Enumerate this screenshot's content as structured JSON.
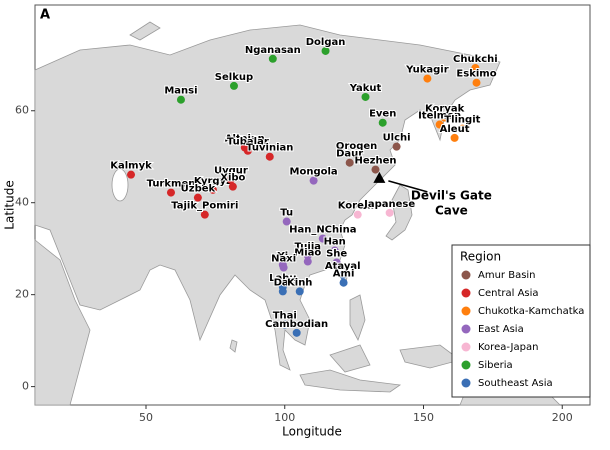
{
  "chart_data": {
    "type": "scatter",
    "panel_label": "A",
    "x_label": "Longitude",
    "y_label": "Latitude",
    "xlim": [
      10,
      210
    ],
    "ylim": [
      -4,
      83
    ],
    "xticks": [
      50,
      100,
      150,
      200
    ],
    "yticks": [
      0,
      20,
      40,
      60
    ],
    "legend_title": "Region",
    "legend_position": "lower right",
    "annotation": {
      "lines": [
        "Devil's Gate",
        "Cave"
      ],
      "x": 134.1,
      "y": 45.4,
      "marker": "triangle",
      "color": "#000000"
    },
    "series": [
      {
        "name": "Amur Basin",
        "color": "#8c564b",
        "names": [
          "Oroqen",
          "Daur",
          "Hezhen",
          "Ulchi"
        ],
        "x": [
          125.9,
          123.4,
          132.7,
          140.3
        ],
        "y": [
          50.4,
          48.7,
          47.2,
          52.2
        ]
      },
      {
        "name": "Central Asia",
        "color": "#d62728",
        "names": [
          "Kalmyk",
          "Turkmen",
          "Kyrgyz",
          "Uzbek",
          "Tajik_Pomiri",
          "Uygur",
          "Xibo",
          "Altaian",
          "Tubalar",
          "Tuvinian"
        ],
        "x": [
          44.6,
          59,
          74.1,
          68.7,
          71.2,
          80.6,
          81.3,
          85.6,
          86.7,
          94.6
        ],
        "y": [
          46.1,
          42.2,
          42.8,
          41.1,
          37.4,
          45,
          43.5,
          52,
          51.3,
          50
        ]
      },
      {
        "name": "Chukotka-Kamchatka",
        "color": "#ff7f0e",
        "names": [
          "Yukagir",
          "Chukchi",
          "Eskimo",
          "Koryak",
          "Itelmen",
          "Tlingit",
          "Aleut"
        ],
        "x": [
          151.4,
          168.7,
          169.1,
          157.6,
          155.8,
          164,
          161.2
        ],
        "y": [
          67,
          69.3,
          66.1,
          58.5,
          57,
          56.1,
          54.1
        ]
      },
      {
        "name": "East Asia",
        "color": "#9467bd",
        "names": [
          "Mongola",
          "Tu",
          "Han_NChina",
          "Han",
          "Tujia",
          "Miao",
          "Yi",
          "Naxi",
          "She"
        ],
        "x": [
          110.4,
          100.7,
          113.7,
          118,
          108.3,
          108.3,
          99.3,
          99.6,
          118.7
        ],
        "y": [
          44.8,
          35.9,
          32.2,
          29.6,
          28.5,
          27.2,
          26.5,
          25.9,
          27
        ]
      },
      {
        "name": "Korea-Japan",
        "color": "#f7b6d2",
        "names": [
          "Korean",
          "Japanese"
        ],
        "x": [
          126.3,
          137.8
        ],
        "y": [
          37.4,
          37.8
        ]
      },
      {
        "name": "Siberia",
        "color": "#2ca02c",
        "names": [
          "Nganasan",
          "Dolgan",
          "Mansi",
          "Selkup",
          "Yakut",
          "Even"
        ],
        "x": [
          95.7,
          114.7,
          62.6,
          81.7,
          129.1,
          135.3
        ],
        "y": [
          71.3,
          73,
          62.4,
          65.4,
          63,
          57.4
        ]
      },
      {
        "name": "Southeast Asia",
        "color": "#3a6fb5",
        "names": [
          "Atayal",
          "Ami",
          "Lahu",
          "Dai",
          "Kinh",
          "Thai",
          "Cambodian"
        ],
        "x": [
          120.9,
          121.2,
          99.3,
          99.3,
          105.4,
          100,
          104.3
        ],
        "y": [
          24.3,
          22.6,
          21.7,
          20.7,
          20.7,
          13.5,
          11.7
        ]
      }
    ]
  }
}
